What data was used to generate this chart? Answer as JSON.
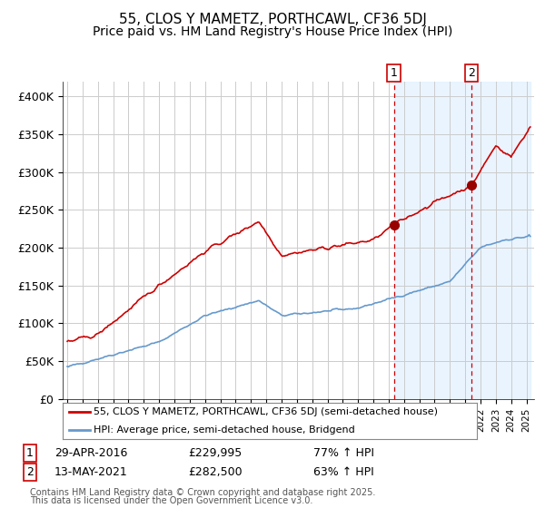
{
  "title1": "55, CLOS Y MAMETZ, PORTHCAWL, CF36 5DJ",
  "title2": "Price paid vs. HM Land Registry's House Price Index (HPI)",
  "legend_line1": "55, CLOS Y MAMETZ, PORTHCAWL, CF36 5DJ (semi-detached house)",
  "legend_line2": "HPI: Average price, semi-detached house, Bridgend",
  "footnote_line1": "Contains HM Land Registry data © Crown copyright and database right 2025.",
  "footnote_line2": "This data is licensed under the Open Government Licence v3.0.",
  "marker1_date": "29-APR-2016",
  "marker1_price": 229995,
  "marker1_label": "77% ↑ HPI",
  "marker2_date": "13-MAY-2021",
  "marker2_price": 282500,
  "marker2_label": "63% ↑ HPI",
  "red_color": "#cc0000",
  "blue_color": "#6699cc",
  "bg_shade_color": "#ddeeff",
  "vline_color": "#cc0000",
  "marker_dot_color": "#990000",
  "ylim": [
    0,
    420000
  ],
  "yticks": [
    0,
    50000,
    100000,
    150000,
    200000,
    250000,
    300000,
    350000,
    400000
  ],
  "ytick_labels": [
    "£0",
    "£50K",
    "£100K",
    "£150K",
    "£200K",
    "£250K",
    "£300K",
    "£350K",
    "£400K"
  ],
  "grid_color": "#cccccc",
  "title_fontsize": 11,
  "subtitle_fontsize": 10,
  "start_year": 1995.0,
  "end_year": 2025.25,
  "marker1_t": 2016.333,
  "marker2_t": 2021.417
}
